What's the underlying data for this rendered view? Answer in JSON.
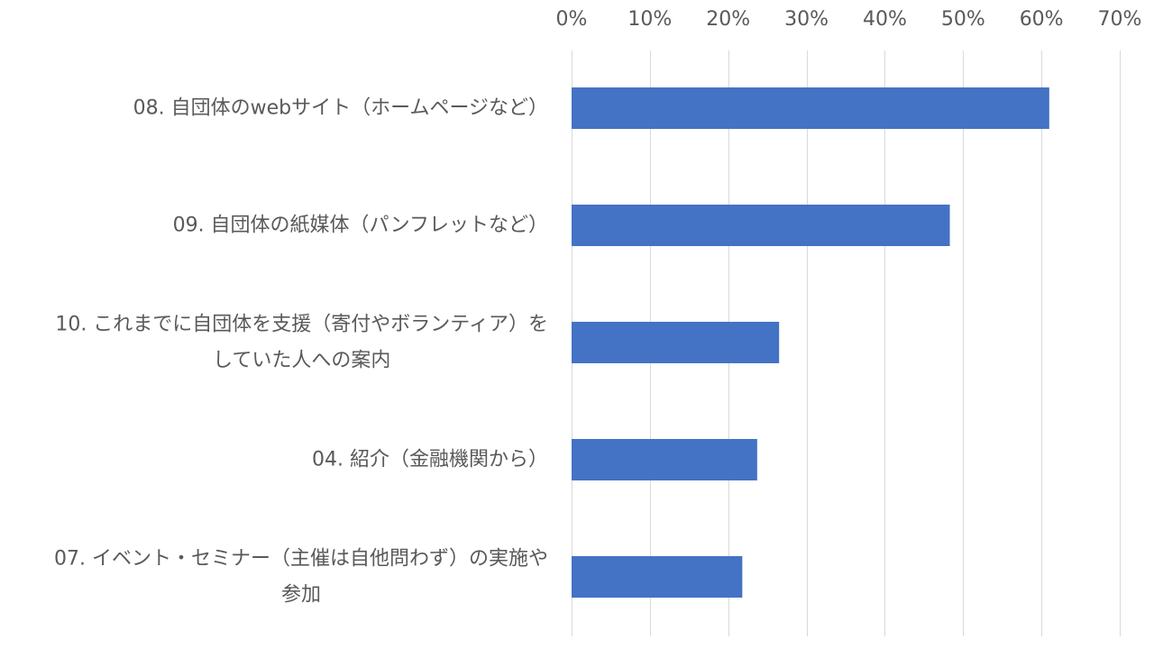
{
  "chart_data": {
    "type": "bar",
    "orientation": "horizontal",
    "categories": [
      [
        "08. 自団体のwebサイト（ホームページなど）"
      ],
      [
        "09. 自団体の紙媒体（パンフレットなど）"
      ],
      [
        "10. これまでに自団体を支援（寄付やボランティア）を",
        "していた人への案内"
      ],
      [
        "04. 紹介（金融機関から）"
      ],
      [
        "07. イベント・セミナー（主催は自他問わず）の実施や",
        "参加"
      ]
    ],
    "values": [
      0.61,
      0.483,
      0.265,
      0.237,
      0.218
    ],
    "xlim": [
      0,
      0.7
    ],
    "xticks": [
      0,
      0.1,
      0.2,
      0.3,
      0.4,
      0.5,
      0.6,
      0.7
    ],
    "xtick_labels": [
      "0%",
      "10%",
      "20%",
      "30%",
      "40%",
      "50%",
      "60%",
      "70%"
    ],
    "x_axis_position": "top",
    "grid": true,
    "bar_color": "#4472c4",
    "grid_color": "#d9d9d9",
    "text_color": "#595959",
    "title": "",
    "xlabel": "",
    "ylabel": ""
  }
}
